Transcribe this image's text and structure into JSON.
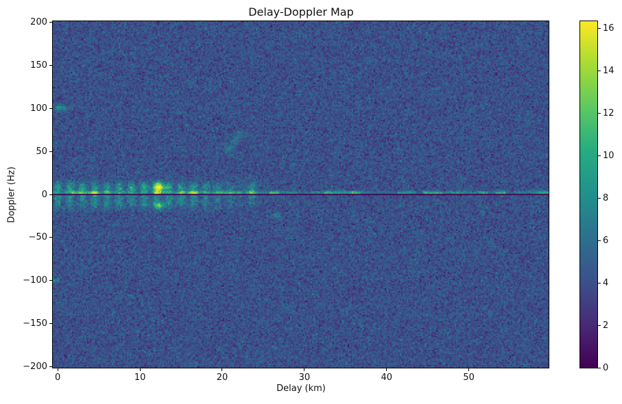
{
  "chart_data": {
    "type": "heatmap",
    "title": "Delay-Doppler Map",
    "xlabel": "Delay (km)",
    "ylabel": "Doppler (Hz)",
    "xlim": [
      -0.6,
      59.7
    ],
    "ylim": [
      -200.8,
      200.8
    ],
    "xticks": [
      0,
      10,
      20,
      30,
      40,
      50
    ],
    "yticks": [
      200,
      150,
      100,
      50,
      0,
      -50,
      -100,
      -150,
      -200
    ],
    "grid": false,
    "legend": null,
    "colorbar": {
      "position": "right",
      "vmin": 0,
      "vmax": 16.35,
      "ticks": [
        0,
        2,
        4,
        6,
        8,
        10,
        12,
        14,
        16
      ],
      "colormap": "viridis"
    },
    "colormap_stops": [
      [
        0.0,
        "#440154"
      ],
      [
        0.13,
        "#472c7a"
      ],
      [
        0.25,
        "#3b518b"
      ],
      [
        0.38,
        "#2c718e"
      ],
      [
        0.5,
        "#21908d"
      ],
      [
        0.63,
        "#27ad81"
      ],
      [
        0.75,
        "#5cc863"
      ],
      [
        0.88,
        "#aadc32"
      ],
      [
        1.0,
        "#fde725"
      ]
    ],
    "noise_floor": {
      "mean": 4.15,
      "std": 1.1,
      "min": 0.2
    },
    "features": [
      {
        "name": "zero-doppler-notch",
        "type": "dark-notch",
        "doppler": 0,
        "halfwidth_hz": 1.1,
        "value": 0.35
      },
      {
        "name": "zero-doppler-ridge",
        "type": "bright-ridge",
        "doppler": 1.8,
        "sigma_hz": 1.4,
        "base_amp": 2.0,
        "seg_amp": 7.0,
        "segment_km": 1.1
      },
      {
        "name": "near-range-clutter-band",
        "type": "clutter-band",
        "delay_end": 15.3,
        "fade_km": 4.5,
        "doppler_center": 1,
        "doppler_sigma": 7.5,
        "amplitude": 2.9,
        "ripple_km": 1.5,
        "lobes": [
          {
            "doppler": 9,
            "sigma": 4.0,
            "weight": 0.8
          },
          {
            "doppler": -11,
            "sigma": 4.5,
            "weight": 0.65
          }
        ]
      },
      {
        "name": "strong-target-echo",
        "type": "blob",
        "delay": 12.35,
        "doppler": 8.5,
        "sigma_delay": 0.45,
        "sigma_doppler": 4.0,
        "amplitude": 11.0
      },
      {
        "name": "target-negative-doppler-sidelobe",
        "type": "blob",
        "delay": 12.35,
        "doppler": -13,
        "sigma_delay": 0.4,
        "sigma_doppler": 2.8,
        "amplitude": 7.0
      },
      {
        "name": "doppler-smear-23km",
        "type": "blob",
        "delay": 23.6,
        "doppler": 4,
        "sigma_delay": 0.28,
        "sigma_doppler": 9.0,
        "amplitude": 4.0
      },
      {
        "name": "ridge-hotspot-23km",
        "type": "blob",
        "delay": 23.6,
        "doppler": 2,
        "sigma_delay": 0.6,
        "sigma_doppler": 1.6,
        "amplitude": 3.0
      },
      {
        "name": "ridge-hotspot-35km",
        "type": "blob",
        "delay": 34.8,
        "doppler": 2.2,
        "sigma_delay": 1.4,
        "sigma_doppler": 1.6,
        "amplitude": 2.6
      },
      {
        "name": "ridge-hotspot-right-edge",
        "type": "blob",
        "delay": 59.2,
        "doppler": 2.0,
        "sigma_delay": 0.8,
        "sigma_doppler": 1.8,
        "amplitude": 4.0
      },
      {
        "name": "echo-plus-100hz",
        "type": "blob",
        "delay": 0.2,
        "doppler": 100.5,
        "sigma_delay": 0.45,
        "sigma_doppler": 2.2,
        "amplitude": 4.5
      },
      {
        "name": "echo-minus-100hz",
        "type": "blob",
        "delay": -0.25,
        "doppler": -100,
        "sigma_delay": 0.4,
        "sigma_doppler": 2.0,
        "amplitude": 2.8
      },
      {
        "name": "spot-26km-minus24hz",
        "type": "blob",
        "delay": 26.6,
        "doppler": -24,
        "sigma_delay": 0.45,
        "sigma_doppler": 2.2,
        "amplitude": 3.2
      },
      {
        "name": "diagonal-streak-21km-60hz",
        "type": "streak",
        "from": [
          20.9,
          52
        ],
        "to": [
          22.2,
          71
        ],
        "sigma_delay": 0.35,
        "sigma_doppler": 3.0,
        "amplitude": 2.0
      }
    ]
  }
}
